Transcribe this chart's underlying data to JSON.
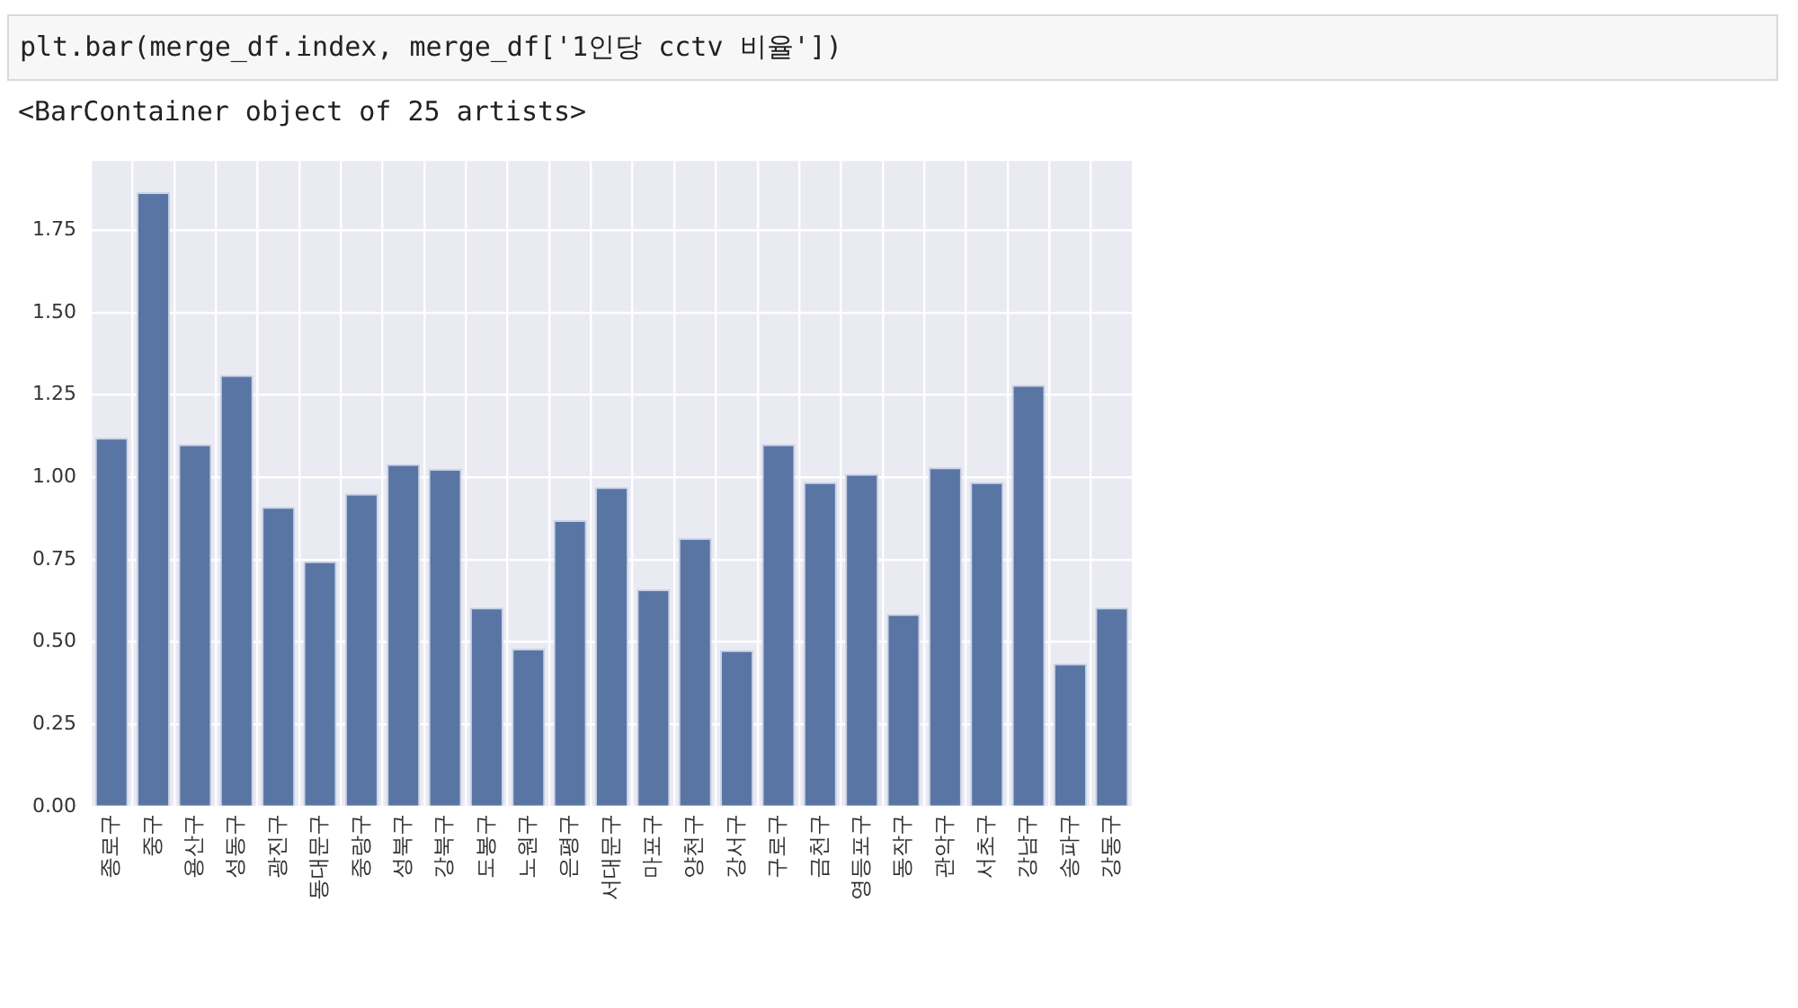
{
  "chart_data": {
    "type": "bar",
    "annotations": [
      "plt.bar(merge_df.index, merge_df['1인당 cctv 비율'])",
      "<BarContainer object of 25 artists>"
    ],
    "categories": [
      "종로구",
      "중구",
      "용산구",
      "성동구",
      "광진구",
      "동대문구",
      "중랑구",
      "성북구",
      "강북구",
      "도봉구",
      "노원구",
      "은평구",
      "서대문구",
      "마포구",
      "양천구",
      "강서구",
      "구로구",
      "금천구",
      "영등포구",
      "동작구",
      "관악구",
      "서초구",
      "강남구",
      "송파구",
      "강동구"
    ],
    "values": [
      1.12,
      1.865,
      1.1,
      1.31,
      0.91,
      0.745,
      0.95,
      1.04,
      1.025,
      0.605,
      0.48,
      0.87,
      0.97,
      0.66,
      0.815,
      0.475,
      1.1,
      0.985,
      1.01,
      0.585,
      1.03,
      0.985,
      1.28,
      0.435,
      0.605
    ],
    "color": "#5975a4",
    "ylim": [
      0,
      1.96
    ],
    "yticks": [
      {
        "value": 0,
        "label": "0.00"
      },
      {
        "value": 0.25,
        "label": "0.25"
      },
      {
        "value": 0.5,
        "label": "0.50"
      },
      {
        "value": 0.75,
        "label": "0.75"
      },
      {
        "value": 1,
        "label": "1.00"
      },
      {
        "value": 1.25,
        "label": "1.25"
      },
      {
        "value": 1.5,
        "label": "1.50"
      },
      {
        "value": 1.75,
        "label": "1.75"
      }
    ],
    "grid": true
  }
}
